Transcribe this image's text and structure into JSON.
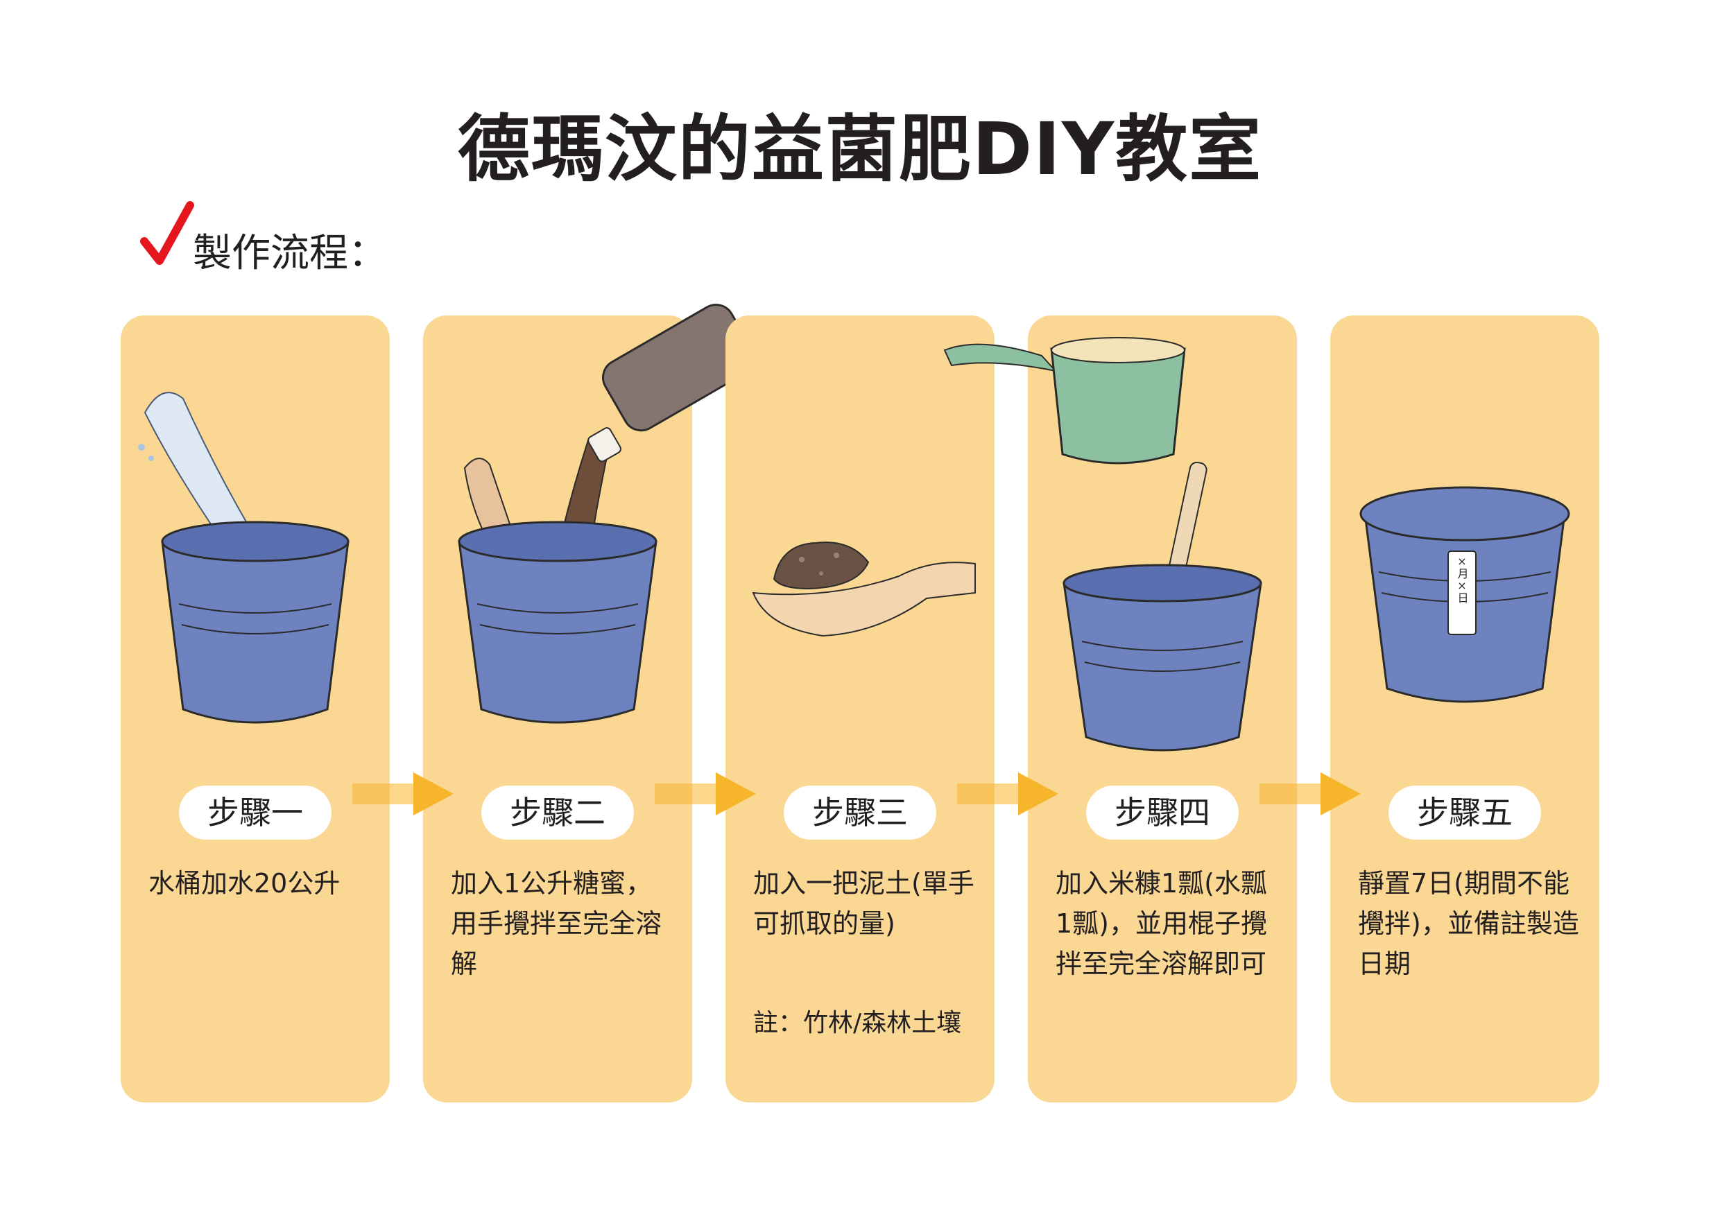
{
  "title": "德瑪汶的益菌肥DIY教室",
  "subheading": "製作流程：",
  "colors": {
    "panel_background": "#fad894",
    "bucket_blue": "#6e82c0",
    "arrow_orange": "#f7b52c",
    "checkmark_red": "#e4171f"
  },
  "steps": [
    {
      "label": "步驟一",
      "text": "水桶加水20公升",
      "icon": "bucket-water-icon"
    },
    {
      "label": "步驟二",
      "text": "加入1公升糖蜜，用手攪拌至完全溶解",
      "icon": "molasses-bottle-icon"
    },
    {
      "label": "步驟三",
      "text": "加入一把泥土(單手可抓取的量)",
      "note": "註：竹林/森林土壤",
      "icon": "hand-soil-icon"
    },
    {
      "label": "步驟四",
      "text": "加入米糠1瓢(水瓢1瓢)，並用棍子攪拌至完全溶解即可",
      "icon": "rice-bran-scoop-icon"
    },
    {
      "label": "步驟五",
      "text": "靜置7日(期間不能攪拌)，並備註製造日期",
      "icon": "lidded-bucket-icon",
      "tag_text": "×月×日"
    }
  ]
}
